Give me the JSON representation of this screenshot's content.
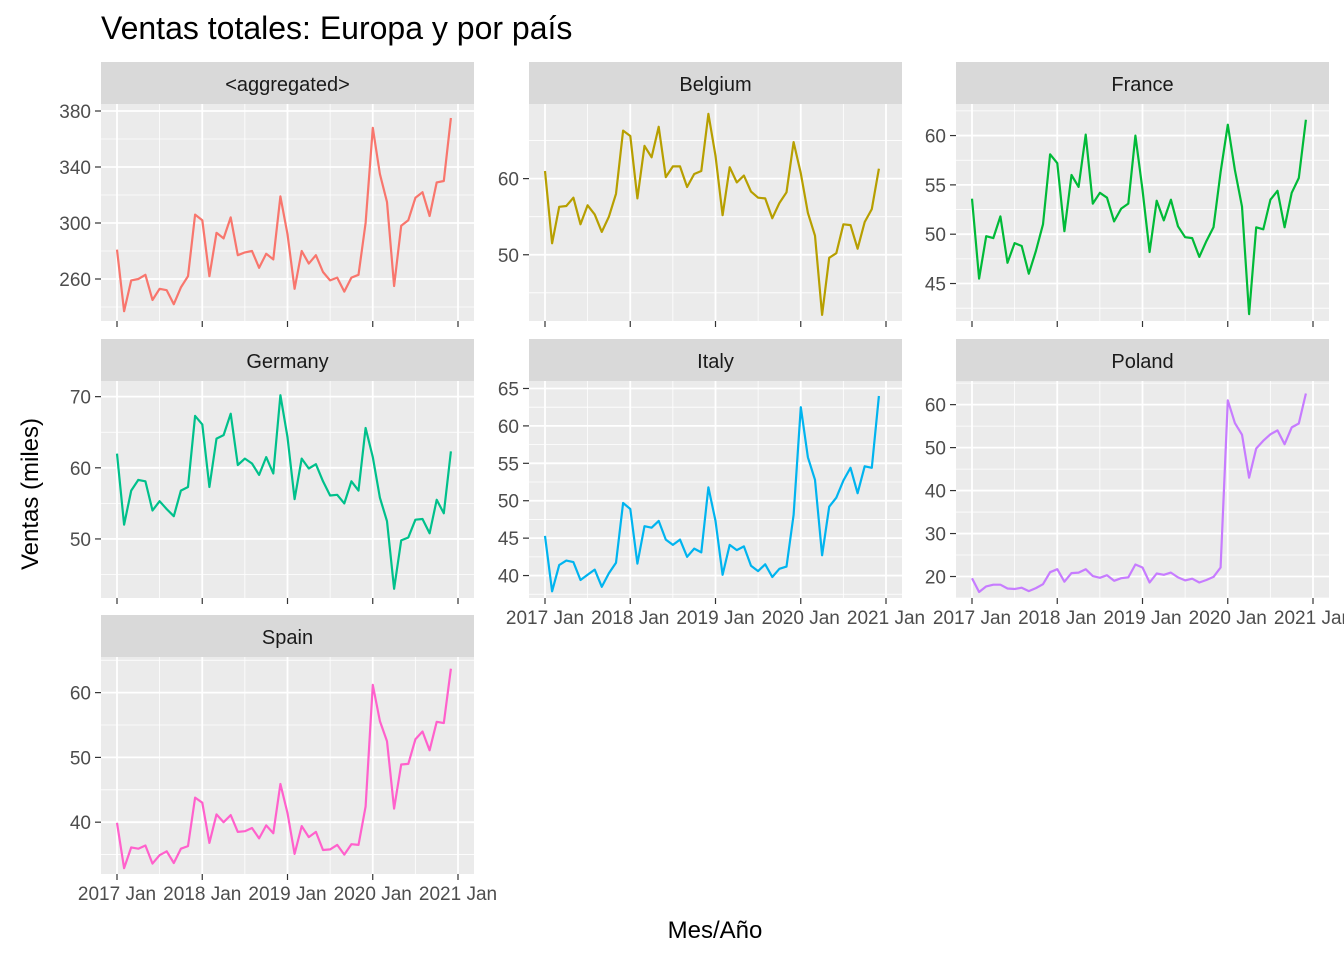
{
  "chart_data": {
    "type": "line",
    "title": "Ventas totales: Europa y por país",
    "xlabel": "Mes/Año",
    "ylabel": "Ventas (miles)",
    "x_tick_labels": [
      "2017 Jan",
      "2018 Jan",
      "2019 Jan",
      "2020 Jan",
      "2021 Jan"
    ],
    "x_tick_values": [
      0,
      12,
      24,
      36,
      48
    ],
    "months": [
      "2017-01",
      "2017-02",
      "2017-03",
      "2017-04",
      "2017-05",
      "2017-06",
      "2017-07",
      "2017-08",
      "2017-09",
      "2017-10",
      "2017-11",
      "2017-12",
      "2018-01",
      "2018-02",
      "2018-03",
      "2018-04",
      "2018-05",
      "2018-06",
      "2018-07",
      "2018-08",
      "2018-09",
      "2018-10",
      "2018-11",
      "2018-12",
      "2019-01",
      "2019-02",
      "2019-03",
      "2019-04",
      "2019-05",
      "2019-06",
      "2019-07",
      "2019-08",
      "2019-09",
      "2019-10",
      "2019-11",
      "2019-12",
      "2020-01",
      "2020-02",
      "2020-03",
      "2020-04",
      "2020-05",
      "2020-06",
      "2020-07",
      "2020-08",
      "2020-09",
      "2020-10",
      "2020-11",
      "2020-12"
    ],
    "grid": true,
    "legend": "none",
    "facets": [
      {
        "name": "<aggregated>",
        "color": "#F8766D",
        "ylim": [
          230,
          385
        ],
        "yticks": [
          260,
          300,
          340,
          380
        ],
        "values": [
          281,
          237,
          259,
          260,
          263,
          245,
          253,
          252,
          242,
          254,
          262,
          306,
          302,
          262,
          293,
          289,
          304,
          277,
          279,
          280,
          268,
          278,
          274,
          319,
          292,
          253,
          280,
          271,
          277,
          265,
          259,
          261,
          251,
          261,
          263,
          300,
          368,
          335,
          315,
          255,
          298,
          302,
          318,
          322,
          305,
          329,
          330,
          375
        ]
      },
      {
        "name": "Belgium",
        "color": "#B79F00",
        "ylim": [
          41.3,
          69.8
        ],
        "yticks": [
          50,
          60
        ],
        "values": [
          61,
          51.5,
          56.3,
          56.4,
          57.5,
          54,
          56.5,
          55.3,
          53,
          55,
          58,
          66.3,
          65.6,
          57.4,
          64.3,
          62.8,
          66.8,
          60.2,
          61.6,
          61.6,
          58.9,
          60.6,
          61,
          68.5,
          63,
          55.2,
          61.5,
          59.5,
          60.4,
          58.3,
          57.5,
          57.4,
          54.8,
          56.8,
          58.2,
          64.8,
          60.7,
          55.5,
          52.5,
          42.1,
          49.6,
          50.2,
          54,
          53.9,
          50.8,
          54.3,
          56,
          61.3
        ]
      },
      {
        "name": "France",
        "color": "#00BA38",
        "ylim": [
          41.2,
          63.2
        ],
        "yticks": [
          45,
          50,
          55,
          60
        ],
        "values": [
          53.6,
          45.5,
          49.8,
          49.6,
          51.8,
          47.1,
          49.1,
          48.8,
          46,
          48.3,
          51,
          58.1,
          57.2,
          50.3,
          56,
          54.8,
          60.1,
          53.1,
          54.2,
          53.7,
          51.3,
          52.6,
          53.1,
          60,
          54.5,
          48.2,
          53.4,
          51.4,
          53.5,
          50.8,
          49.7,
          49.6,
          47.7,
          49.3,
          50.7,
          56.3,
          61.1,
          56.5,
          52.8,
          41.9,
          50.7,
          50.5,
          53.5,
          54.4,
          50.7,
          54.2,
          55.7,
          61.6
        ]
      },
      {
        "name": "Germany",
        "color": "#00C08B",
        "ylim": [
          41.7,
          72.2
        ],
        "yticks": [
          50,
          60,
          70
        ],
        "values": [
          62,
          52,
          56.8,
          58.3,
          58.1,
          54,
          55.3,
          54.2,
          53.2,
          56.8,
          57.3,
          67.3,
          66.1,
          57.3,
          64.1,
          64.6,
          67.6,
          60.4,
          61.3,
          60.6,
          59,
          61.5,
          59.2,
          70.2,
          64.3,
          55.6,
          61.3,
          59.9,
          60.5,
          58.1,
          56.1,
          56.2,
          55,
          58.1,
          56.8,
          65.6,
          61.5,
          55.8,
          52.5,
          43,
          49.8,
          50.2,
          52.7,
          52.8,
          50.8,
          55.5,
          53.6,
          62.3
        ]
      },
      {
        "name": "Italy",
        "color": "#00B4EF",
        "ylim": [
          37,
          66
        ],
        "yticks": [
          40,
          45,
          50,
          55,
          60,
          65
        ],
        "values": [
          45.3,
          37.9,
          41.4,
          42,
          41.8,
          39.4,
          40.1,
          40.8,
          38.5,
          40.3,
          41.7,
          49.7,
          48.9,
          41.6,
          46.6,
          46.4,
          47.3,
          44.8,
          44.1,
          44.8,
          42.5,
          43.6,
          43.1,
          51.8,
          47.3,
          40.1,
          44.1,
          43.4,
          43.9,
          41.3,
          40.6,
          41.5,
          39.8,
          40.9,
          41.2,
          48.1,
          62.5,
          55.8,
          52.8,
          42.7,
          49.2,
          50.4,
          52.7,
          54.4,
          51,
          54.6,
          54.4,
          64
        ]
      },
      {
        "name": "Poland",
        "color": "#C77CFF",
        "ylim": [
          15,
          65.5
        ],
        "yticks": [
          20,
          30,
          40,
          50,
          60
        ],
        "values": [
          19.6,
          16.4,
          17.7,
          18.1,
          18.1,
          17.2,
          17.1,
          17.4,
          16.6,
          17.3,
          18.2,
          21,
          21.7,
          18.8,
          20.8,
          20.9,
          21.7,
          20.1,
          19.7,
          20.3,
          19,
          19.6,
          19.8,
          22.8,
          22.1,
          18.6,
          20.7,
          20.4,
          20.9,
          19.8,
          19.1,
          19.5,
          18.6,
          19.2,
          19.9,
          22.1,
          61,
          55.7,
          53,
          43,
          49.8,
          51.6,
          53.1,
          54,
          50.8,
          54.7,
          55.6,
          62.6
        ]
      },
      {
        "name": "Spain",
        "color": "#FF61CC",
        "ylim": [
          32,
          65.5
        ],
        "yticks": [
          40,
          50,
          60
        ],
        "values": [
          39.9,
          32.9,
          36.1,
          35.9,
          36.4,
          33.6,
          34.9,
          35.5,
          33.7,
          35.9,
          36.3,
          43.8,
          43,
          36.8,
          41.2,
          40,
          41.1,
          38.5,
          38.6,
          39.1,
          37.5,
          39.5,
          38.3,
          45.9,
          41.4,
          35.1,
          39.4,
          37.7,
          38.5,
          35.7,
          35.8,
          36.5,
          35,
          36.6,
          36.5,
          42.4,
          61.2,
          55.6,
          52.5,
          42.1,
          48.9,
          49,
          52.8,
          54,
          51.1,
          55.5,
          55.3,
          63.7
        ]
      }
    ]
  }
}
